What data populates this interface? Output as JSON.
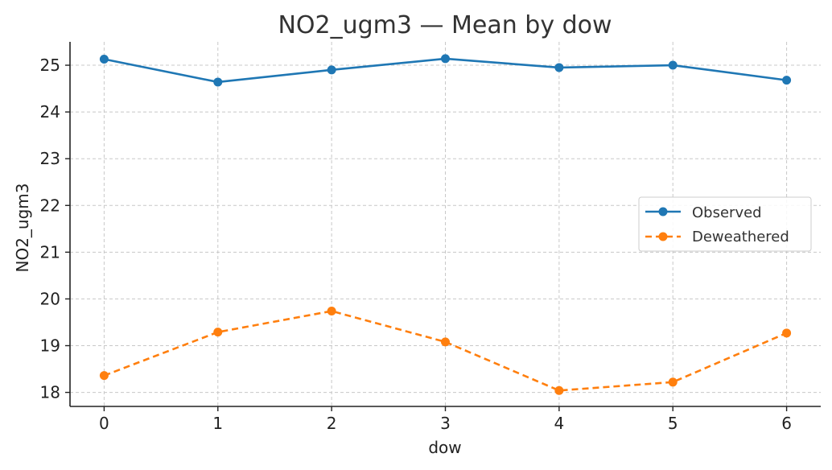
{
  "chart_data": {
    "type": "line",
    "title": "NO2_ugm3 — Mean by dow",
    "xlabel": "dow",
    "ylabel": "NO2_ugm3",
    "x": [
      0,
      1,
      2,
      3,
      4,
      5,
      6
    ],
    "xlim": [
      -0.3,
      6.3
    ],
    "ylim": [
      17.7,
      25.5
    ],
    "yticks": [
      18,
      19,
      20,
      21,
      22,
      23,
      24,
      25
    ],
    "grid": true,
    "legend_position": "center-right",
    "series": [
      {
        "name": "Observed",
        "values": [
          25.13,
          24.64,
          24.9,
          25.14,
          24.95,
          25.0,
          24.68
        ],
        "color": "#1f77b4",
        "line_style": "solid",
        "marker": "circle"
      },
      {
        "name": "Deweathered",
        "values": [
          18.36,
          19.29,
          19.74,
          19.08,
          18.04,
          18.22,
          19.27
        ],
        "color": "#ff7f0e",
        "line_style": "dashed",
        "marker": "circle"
      }
    ]
  }
}
